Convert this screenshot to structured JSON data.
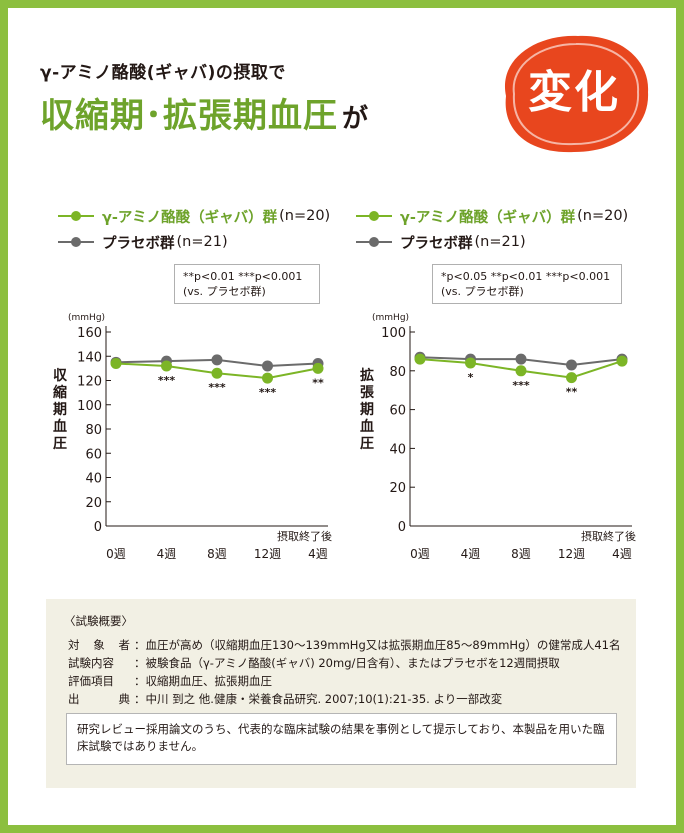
{
  "header": {
    "subtitle": "γ-アミノ酪酸(ギャバ)の摂取で",
    "title": "収縮期･拡張期血圧",
    "title_suffix": "が",
    "stamp": "変化"
  },
  "legend": {
    "gaba_label": "γ-アミノ酪酸（ギャバ）群",
    "gaba_n": "(n=20)",
    "placebo_label": "プラセボ群",
    "placebo_n": "(n=21)"
  },
  "charts": [
    {
      "note_line1": "**p<0.01  ***p<0.001",
      "note_line2": "(vs. プラセボ群)",
      "ylabel": "収縮期血圧"
    },
    {
      "note_line1": "*p<0.05 **p<0.01 ***p<0.001",
      "note_line2": "(vs. プラセボ群)",
      "ylabel": "拡張期血圧"
    }
  ],
  "chart_data": [
    {
      "type": "line",
      "unit": "(mmHg)",
      "ylabel": "収縮期血圧",
      "categories": [
        "0週",
        "4週",
        "8週",
        "12週",
        "4週"
      ],
      "x_extra_label": "摂取終了後",
      "ylim": [
        0,
        160
      ],
      "yticks": [
        0,
        20,
        40,
        60,
        80,
        100,
        120,
        140,
        160
      ],
      "series": [
        {
          "name": "γ-アミノ酪酸（ギャバ）群",
          "color": "#7cb526",
          "values": [
            134,
            132,
            126,
            122,
            130
          ]
        },
        {
          "name": "プラセボ群",
          "color": "#6b6b6b",
          "values": [
            135,
            136,
            137,
            132,
            134
          ]
        }
      ],
      "significance": [
        "",
        "***",
        "***",
        "***",
        "**"
      ]
    },
    {
      "type": "line",
      "unit": "(mmHg)",
      "ylabel": "拡張期血圧",
      "categories": [
        "0週",
        "4週",
        "8週",
        "12週",
        "4週"
      ],
      "x_extra_label": "摂取終了後",
      "ylim": [
        0,
        100
      ],
      "yticks": [
        0,
        20,
        40,
        60,
        80,
        100
      ],
      "series": [
        {
          "name": "γ-アミノ酪酸（ギャバ）群",
          "color": "#7cb526",
          "values": [
            86,
            84,
            80,
            76.5,
            85
          ]
        },
        {
          "name": "プラセボ群",
          "color": "#6b6b6b",
          "values": [
            87,
            86,
            86,
            83,
            86
          ]
        }
      ],
      "significance": [
        "",
        "*",
        "***",
        "**",
        ""
      ]
    }
  ],
  "summary": {
    "heading": "〈試験概要〉",
    "items": [
      {
        "k1": "対",
        "k2": "象",
        "k3": "者",
        "v": "血圧が高め（収縮期血圧130〜139mmHg又は拡張期血圧85〜89mmHg）の健常成人41名"
      },
      {
        "k1": "試験内容",
        "k2": "",
        "k3": "",
        "v": "被験食品（γ-アミノ酪酸(ギャバ) 20mg/日含有）、またはプラセボを12週間摂取"
      },
      {
        "k1": "評価項目",
        "k2": "",
        "k3": "",
        "v": "収縮期血圧、拡張期血圧"
      },
      {
        "k1": "出",
        "k2": "",
        "k3": "典",
        "v": "中川 到之 他.健康・栄養食品研究. 2007;10(1):21-35. より一部改変"
      }
    ],
    "disclaimer": "研究レビュー採用論文のうち、代表的な臨床試験の結果を事例として提示しており、本製品を用いた臨床試験ではありません。"
  }
}
